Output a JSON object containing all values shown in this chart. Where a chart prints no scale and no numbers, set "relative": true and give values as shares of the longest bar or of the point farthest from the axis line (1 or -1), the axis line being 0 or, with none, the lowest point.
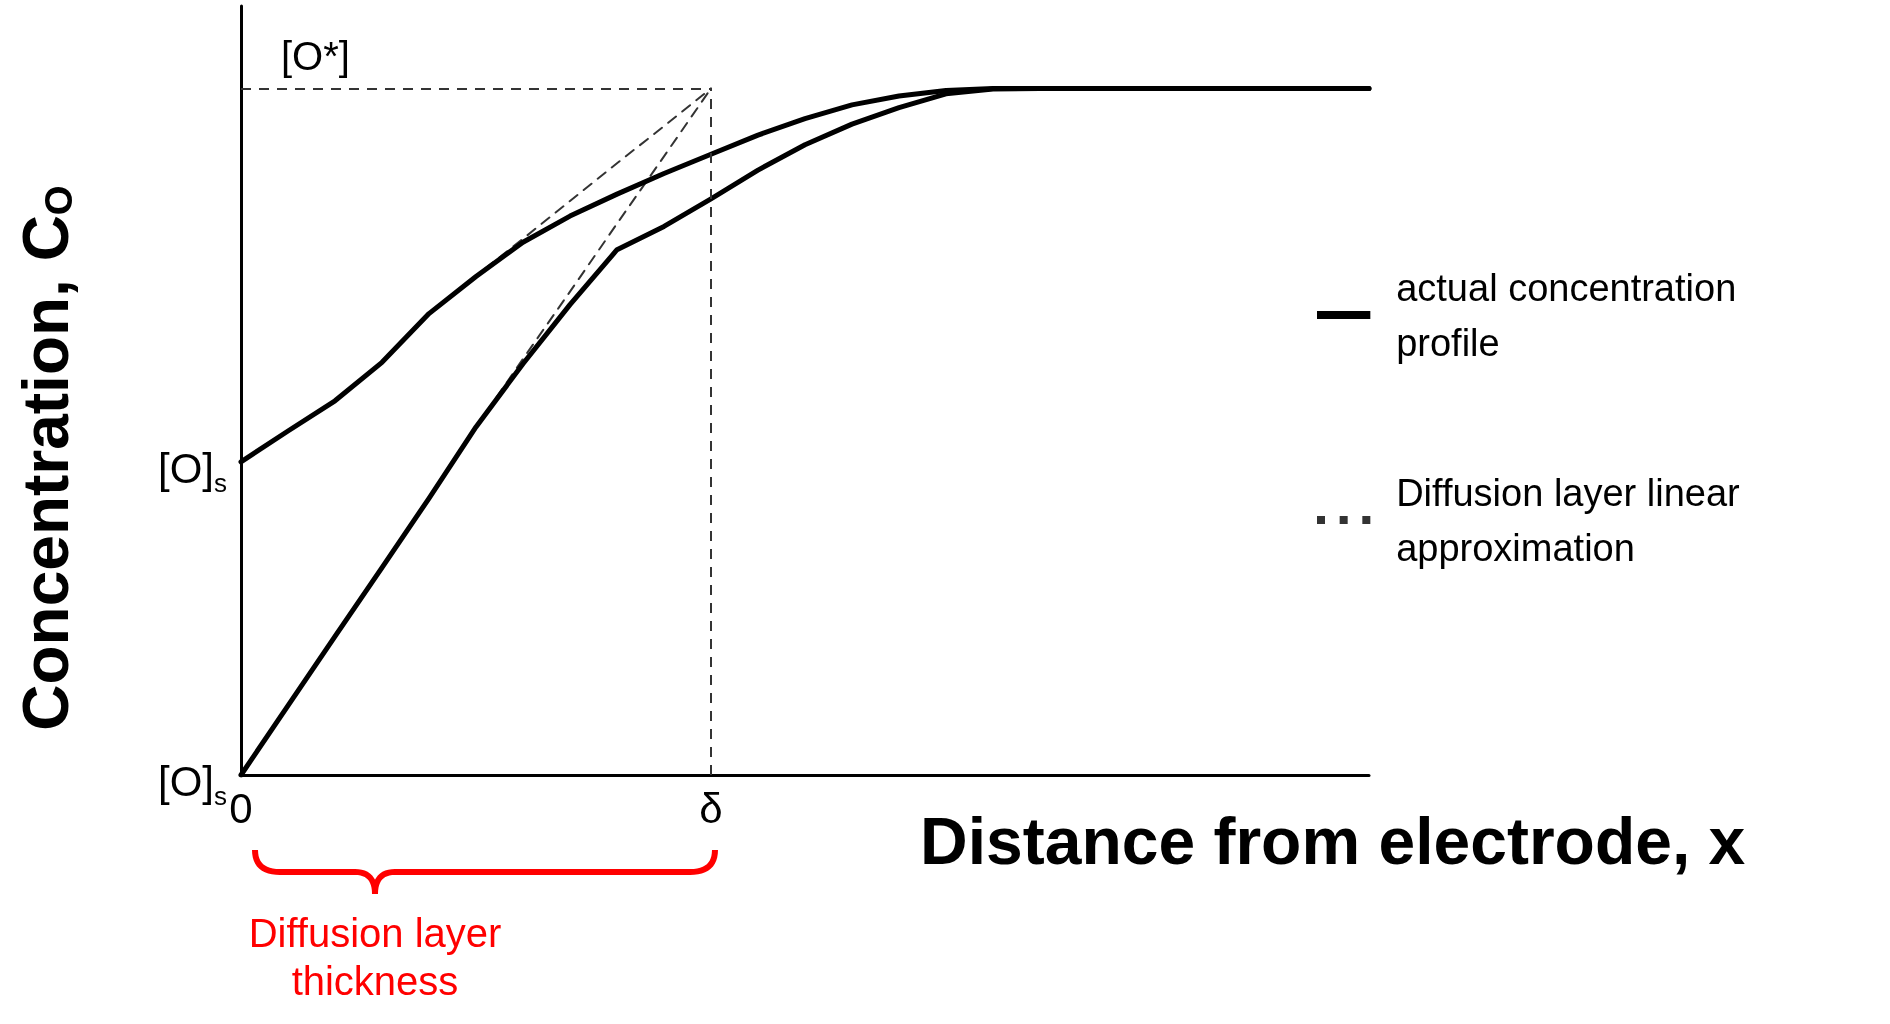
{
  "chart_data": {
    "type": "line",
    "relative": true,
    "xlabel": "Distance from electrode, x",
    "ylabel": "Concentration, C$_{O}$",
    "categories": [
      "0",
      null,
      null,
      null,
      null,
      null,
      null,
      null,
      null,
      null,
      "δ",
      null,
      null,
      null,
      null,
      null,
      null,
      null,
      null,
      null,
      null,
      null,
      null,
      null,
      null
    ],
    "series": [
      {
        "name": "actual concentration profile",
        "color": "#000000",
        "line_style": "solid",
        "values": [
          0.456,
          0.501,
          0.545,
          0.601,
          0.672,
          0.726,
          0.776,
          0.814,
          0.846,
          0.876,
          0.904,
          0.932,
          0.956,
          0.976,
          0.989,
          0.997,
          1,
          1,
          1,
          1,
          1,
          1,
          1,
          1,
          1
        ]
      },
      {
        "color": "#000000",
        "line_style": "solid",
        "values": [
          0,
          0.101,
          0.202,
          0.302,
          0.403,
          0.507,
          0.599,
          0.685,
          0.765,
          0.799,
          0.839,
          0.881,
          0.918,
          0.948,
          0.972,
          0.992,
          0.999,
          1,
          1,
          1,
          1,
          1,
          1,
          1,
          1
        ]
      },
      {
        "name": "Diffusion layer linear approximation",
        "color": "#333333",
        "line_style": "dashed",
        "values": [
          null,
          null,
          null,
          null,
          0.672,
          0.727,
          0.781,
          0.836,
          0.891,
          0.945,
          1,
          null,
          null,
          null,
          null,
          null,
          null,
          null,
          null,
          null,
          null,
          null,
          null,
          null,
          null
        ]
      },
      {
        "color": "#333333",
        "line_style": "dashed",
        "values": [
          null,
          null,
          null,
          null,
          null,
          0.507,
          0.606,
          0.704,
          0.803,
          0.901,
          1,
          null,
          null,
          null,
          null,
          null,
          null,
          null,
          null,
          null,
          null,
          null,
          null,
          null,
          null
        ]
      }
    ],
    "ref_lines": [
      {
        "axis": "y",
        "value": 1,
        "label": "[O*]",
        "line_style": "dashed"
      },
      {
        "axis": "x",
        "value": "δ",
        "label": null,
        "line_style": "dashed"
      }
    ],
    "annotations": [
      {
        "text": "[O]$_{s}$",
        "x": "0",
        "y": 0.456
      },
      {
        "text": "[O]$_{s}$",
        "x": "0",
        "y": 0
      },
      "Diffusion layer thickness"
    ],
    "marker": "none",
    "grid": false,
    "legend": "right"
  }
}
